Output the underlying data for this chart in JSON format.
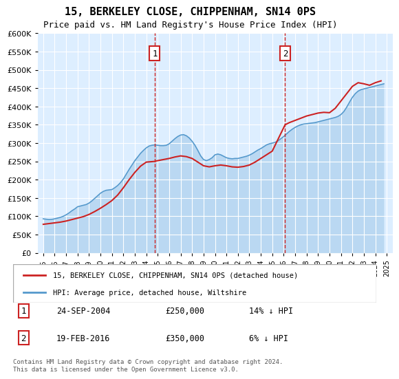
{
  "title": "15, BERKELEY CLOSE, CHIPPENHAM, SN14 0PS",
  "subtitle": "Price paid vs. HM Land Registry's House Price Index (HPI)",
  "ylabel_ticks": [
    "£0",
    "£50K",
    "£100K",
    "£150K",
    "£200K",
    "£250K",
    "£300K",
    "£350K",
    "£400K",
    "£450K",
    "£500K",
    "£550K",
    "£600K"
  ],
  "ylim": [
    0,
    600000
  ],
  "yticks": [
    0,
    50000,
    100000,
    150000,
    200000,
    250000,
    300000,
    350000,
    400000,
    450000,
    500000,
    550000,
    600000
  ],
  "xlim_start": 1994.5,
  "xlim_end": 2025.5,
  "background_color": "#ddeeff",
  "plot_bg": "#ddeeff",
  "hpi_color": "#5599cc",
  "price_color": "#cc2222",
  "event1_x": 2004.73,
  "event1_label": "1",
  "event1_date": "24-SEP-2004",
  "event1_price": "£250,000",
  "event1_pct": "14% ↓ HPI",
  "event2_x": 2016.12,
  "event2_label": "2",
  "event2_date": "19-FEB-2016",
  "event2_price": "£350,000",
  "event2_pct": "6% ↓ HPI",
  "legend_line1": "15, BERKELEY CLOSE, CHIPPENHAM, SN14 0PS (detached house)",
  "legend_line2": "HPI: Average price, detached house, Wiltshire",
  "footnote": "Contains HM Land Registry data © Crown copyright and database right 2024.\nThis data is licensed under the Open Government Licence v3.0.",
  "hpi_x": [
    1995,
    1995.25,
    1995.5,
    1995.75,
    1996,
    1996.25,
    1996.5,
    1996.75,
    1997,
    1997.25,
    1997.5,
    1997.75,
    1998,
    1998.25,
    1998.5,
    1998.75,
    1999,
    1999.25,
    1999.5,
    1999.75,
    2000,
    2000.25,
    2000.5,
    2000.75,
    2001,
    2001.25,
    2001.5,
    2001.75,
    2002,
    2002.25,
    2002.5,
    2002.75,
    2003,
    2003.25,
    2003.5,
    2003.75,
    2004,
    2004.25,
    2004.5,
    2004.75,
    2005,
    2005.25,
    2005.5,
    2005.75,
    2006,
    2006.25,
    2006.5,
    2006.75,
    2007,
    2007.25,
    2007.5,
    2007.75,
    2008,
    2008.25,
    2008.5,
    2008.75,
    2009,
    2009.25,
    2009.5,
    2009.75,
    2010,
    2010.25,
    2010.5,
    2010.75,
    2011,
    2011.25,
    2011.5,
    2011.75,
    2012,
    2012.25,
    2012.5,
    2012.75,
    2013,
    2013.25,
    2013.5,
    2013.75,
    2014,
    2014.25,
    2014.5,
    2014.75,
    2015,
    2015.25,
    2015.5,
    2015.75,
    2016,
    2016.25,
    2016.5,
    2016.75,
    2017,
    2017.25,
    2017.5,
    2017.75,
    2018,
    2018.25,
    2018.5,
    2018.75,
    2019,
    2019.25,
    2019.5,
    2019.75,
    2020,
    2020.25,
    2020.5,
    2020.75,
    2021,
    2021.25,
    2021.5,
    2021.75,
    2022,
    2022.25,
    2022.5,
    2022.75,
    2023,
    2023.25,
    2023.5,
    2023.75,
    2024,
    2024.25,
    2024.5,
    2024.75
  ],
  "hpi_y": [
    93000,
    92000,
    91000,
    91500,
    93000,
    95000,
    97000,
    100000,
    104000,
    109000,
    115000,
    120000,
    126000,
    128000,
    130000,
    132000,
    136000,
    142000,
    149000,
    156000,
    163000,
    168000,
    171000,
    172000,
    173000,
    178000,
    184000,
    192000,
    202000,
    215000,
    228000,
    240000,
    252000,
    262000,
    272000,
    280000,
    287000,
    292000,
    294000,
    295000,
    294000,
    293000,
    293000,
    294000,
    298000,
    305000,
    312000,
    318000,
    322000,
    323000,
    320000,
    314000,
    305000,
    294000,
    280000,
    265000,
    255000,
    252000,
    255000,
    260000,
    268000,
    270000,
    268000,
    264000,
    260000,
    258000,
    257000,
    258000,
    258000,
    260000,
    262000,
    264000,
    267000,
    271000,
    276000,
    281000,
    285000,
    290000,
    295000,
    298000,
    300000,
    302000,
    306000,
    312000,
    318000,
    325000,
    332000,
    338000,
    343000,
    347000,
    350000,
    352000,
    353000,
    354000,
    355000,
    356000,
    358000,
    360000,
    362000,
    364000,
    366000,
    368000,
    370000,
    373000,
    378000,
    386000,
    398000,
    412000,
    425000,
    435000,
    442000,
    446000,
    448000,
    450000,
    452000,
    454000,
    456000,
    458000,
    460000,
    462000
  ],
  "price_x": [
    1995.0,
    1995.5,
    1996.0,
    1996.5,
    1997.0,
    1997.5,
    1998.0,
    1998.5,
    1999.0,
    1999.5,
    2000.0,
    2000.5,
    2001.0,
    2001.5,
    2002.0,
    2002.5,
    2003.0,
    2003.5,
    2004.0,
    2004.75,
    2005.0,
    2005.5,
    2006.0,
    2006.5,
    2007.0,
    2007.5,
    2008.0,
    2008.5,
    2009.0,
    2009.5,
    2010.0,
    2010.5,
    2011.0,
    2011.5,
    2012.0,
    2012.5,
    2013.0,
    2013.5,
    2014.0,
    2014.5,
    2015.0,
    2016.12,
    2016.5,
    2017.0,
    2017.5,
    2018.0,
    2018.5,
    2019.0,
    2019.5,
    2020.0,
    2020.5,
    2021.0,
    2021.5,
    2022.0,
    2022.5,
    2023.0,
    2023.5,
    2024.0,
    2024.5
  ],
  "price_y": [
    78000,
    80000,
    82000,
    84000,
    87000,
    91000,
    95000,
    99000,
    105000,
    113000,
    122000,
    132000,
    143000,
    158000,
    178000,
    200000,
    220000,
    237000,
    248000,
    250000,
    252000,
    255000,
    258000,
    262000,
    265000,
    263000,
    258000,
    248000,
    238000,
    235000,
    238000,
    240000,
    238000,
    235000,
    234000,
    236000,
    240000,
    248000,
    258000,
    268000,
    278000,
    350000,
    356000,
    362000,
    368000,
    374000,
    378000,
    382000,
    384000,
    383000,
    395000,
    415000,
    435000,
    455000,
    465000,
    462000,
    458000,
    465000,
    470000
  ]
}
